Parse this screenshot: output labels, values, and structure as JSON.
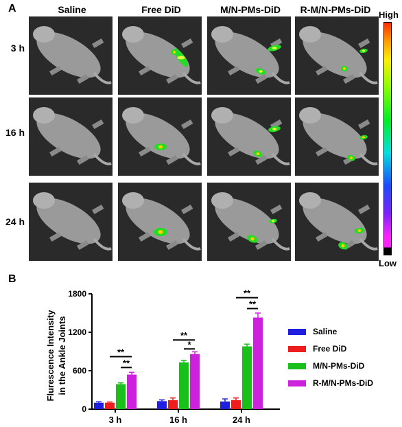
{
  "panel_a": {
    "letter": "A",
    "columns": [
      "Saline",
      "Free DiD",
      "M/N-PMs-DiD",
      "R-M/N-PMs-DiD"
    ],
    "rows": [
      "3 h",
      "16 h",
      "24 h"
    ],
    "colorbar": {
      "high": "High",
      "low": "Low"
    }
  },
  "panel_b": {
    "letter": "B"
  },
  "chart_data": {
    "type": "bar",
    "ylabel_line1": "Flurescence Intensity",
    "ylabel_line2": "in the Ankle Joints",
    "ylim": [
      0,
      1800
    ],
    "yticks": [
      0,
      600,
      1200,
      1800
    ],
    "categories": [
      "3 h",
      "16 h",
      "24 h"
    ],
    "legend_position": "right",
    "series": [
      {
        "name": "Saline",
        "color": "#1f1fe0",
        "values": [
          100,
          125,
          120
        ],
        "errors": [
          15,
          20,
          40
        ]
      },
      {
        "name": "Free DiD",
        "color": "#ee1c1c",
        "values": [
          100,
          140,
          140
        ],
        "errors": [
          12,
          35,
          35
        ]
      },
      {
        "name": "M/N-PMs-DiD",
        "color": "#19c019",
        "values": [
          390,
          730,
          980
        ],
        "errors": [
          20,
          30,
          35
        ]
      },
      {
        "name": "R-M/N-PMs-DiD",
        "color": "#cc22dd",
        "values": [
          540,
          860,
          1430
        ],
        "errors": [
          35,
          35,
          70
        ]
      }
    ],
    "significance": [
      {
        "group": 0,
        "from": 1,
        "to": 3,
        "label": "**",
        "y": 820
      },
      {
        "group": 0,
        "from": 2,
        "to": 3,
        "label": "**",
        "y": 650
      },
      {
        "group": 1,
        "from": 1,
        "to": 3,
        "label": "**",
        "y": 1080
      },
      {
        "group": 1,
        "from": 2,
        "to": 3,
        "label": "*",
        "y": 940
      },
      {
        "group": 2,
        "from": 1,
        "to": 3,
        "label": "**",
        "y": 1740
      },
      {
        "group": 2,
        "from": 2,
        "to": 3,
        "label": "**",
        "y": 1570
      }
    ]
  }
}
